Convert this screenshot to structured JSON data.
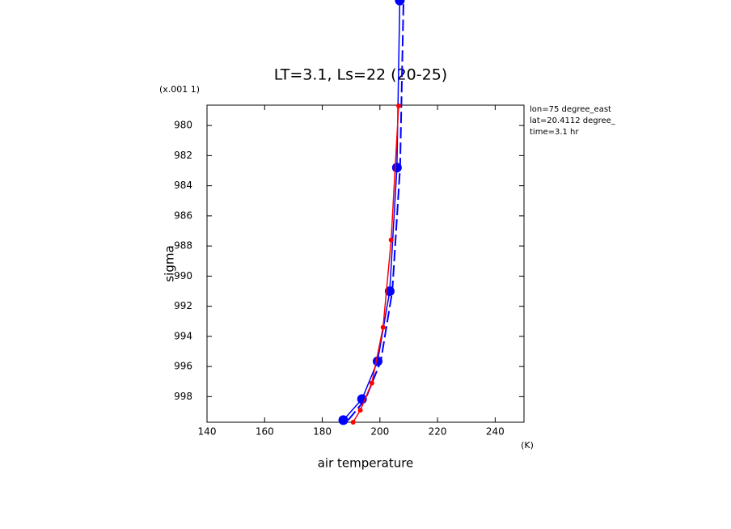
{
  "chart_data": {
    "type": "line",
    "title": "LT=3.1, Ls=22 (20-25)",
    "x_label": "air temperature",
    "x_unit": "(K)",
    "y_label": "sigma",
    "y_unit": "(x.001 1)",
    "annotations": [
      "lon=75 degree_east",
      "lat=20.4112 degree_",
      "time=3.1 hr"
    ],
    "xlim": [
      140,
      250
    ],
    "xticks": [
      140,
      160,
      180,
      200,
      220,
      240
    ],
    "ylim": [
      999.7,
      978.65
    ],
    "yticks": [
      980,
      982,
      984,
      986,
      988,
      990,
      992,
      994,
      996,
      998
    ],
    "series": [
      {
        "color": "#0000ff",
        "style": "solid",
        "markers": true,
        "x": [
          187.3,
          193.8,
          199.2,
          203.4,
          205.9,
          206.9
        ],
        "values": [
          999.56,
          998.16,
          995.65,
          991.0,
          982.8,
          971.7
        ]
      },
      {
        "color": "#0000ff",
        "style": "dashed",
        "markers": false,
        "x": [
          189,
          195,
          200.3,
          204.3,
          207,
          208.2
        ],
        "values": [
          999.56,
          998.16,
          995.65,
          991.0,
          982.8,
          971.7
        ]
      },
      {
        "color": "#ff0000",
        "style": "solid",
        "markers": true,
        "x": [
          190.7,
          193.2,
          197.2,
          201.1,
          203.9,
          206.5
        ],
        "values": [
          999.7,
          998.9,
          997.1,
          993.4,
          987.6,
          978.7
        ]
      }
    ]
  }
}
